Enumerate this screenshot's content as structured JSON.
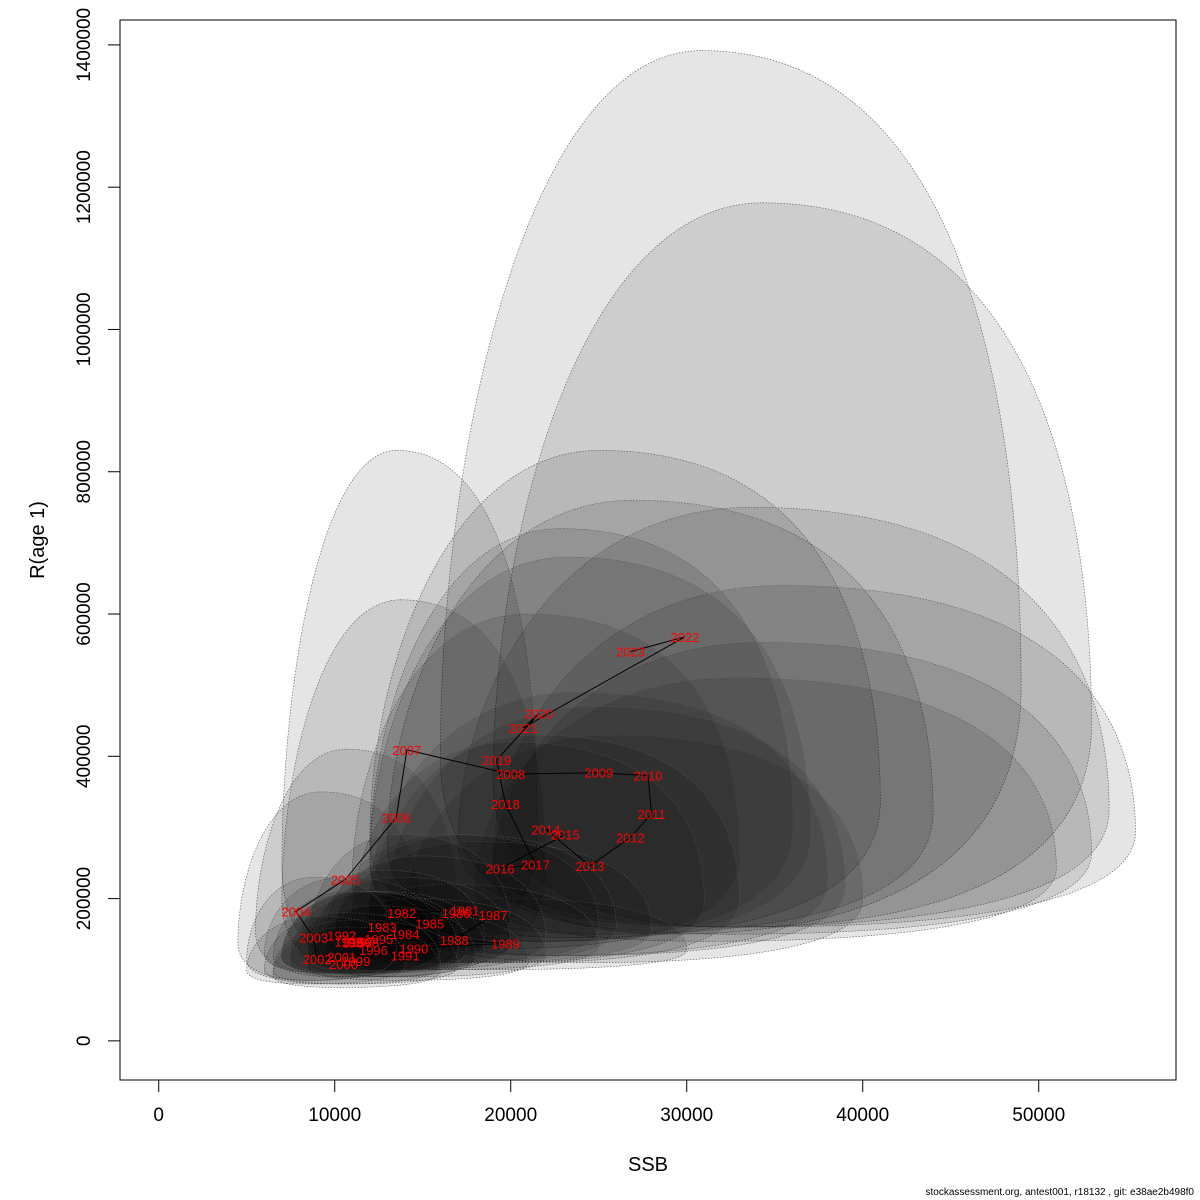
{
  "chart_data": {
    "type": "scatter",
    "title": "",
    "xlabel": "SSB",
    "ylabel": "R(age 1)",
    "xlim": [
      -2200,
      57800
    ],
    "ylim": [
      -55000,
      1435000
    ],
    "xticks": [
      0,
      10000,
      20000,
      30000,
      40000,
      50000
    ],
    "yticks": [
      0,
      200000,
      400000,
      600000,
      800000,
      1000000,
      1200000,
      1400000
    ],
    "grid": false,
    "ellipse_fill": "#000000",
    "ellipse_fill_opacity": 0.1,
    "label_color": "#ff0000",
    "path_color": "#000000",
    "points": [
      {
        "year": "1981",
        "x": 17400,
        "y": 183000
      },
      {
        "year": "1982",
        "x": 13800,
        "y": 180000
      },
      {
        "year": "1983",
        "x": 12700,
        "y": 160000
      },
      {
        "year": "1984",
        "x": 14000,
        "y": 150000
      },
      {
        "year": "1985",
        "x": 15400,
        "y": 165000
      },
      {
        "year": "1986",
        "x": 16900,
        "y": 180000
      },
      {
        "year": "1987",
        "x": 19000,
        "y": 177000
      },
      {
        "year": "1988",
        "x": 16800,
        "y": 142000
      },
      {
        "year": "1989",
        "x": 19700,
        "y": 137000
      },
      {
        "year": "1990",
        "x": 14500,
        "y": 130000
      },
      {
        "year": "1991",
        "x": 14000,
        "y": 120000
      },
      {
        "year": "1992",
        "x": 10400,
        "y": 148000
      },
      {
        "year": "1993",
        "x": 10800,
        "y": 140000
      },
      {
        "year": "1994",
        "x": 11200,
        "y": 138000
      },
      {
        "year": "1995",
        "x": 12500,
        "y": 143000
      },
      {
        "year": "1996",
        "x": 12200,
        "y": 128000
      },
      {
        "year": "1997",
        "x": 11400,
        "y": 140000
      },
      {
        "year": "1998",
        "x": 11700,
        "y": 139000
      },
      {
        "year": "1999",
        "x": 11200,
        "y": 112000
      },
      {
        "year": "2000",
        "x": 10500,
        "y": 108000
      },
      {
        "year": "2001",
        "x": 10400,
        "y": 118000
      },
      {
        "year": "2002",
        "x": 9000,
        "y": 115000
      },
      {
        "year": "2003",
        "x": 8800,
        "y": 145000
      },
      {
        "year": "2004",
        "x": 7800,
        "y": 182000
      },
      {
        "year": "2005",
        "x": 10600,
        "y": 227000
      },
      {
        "year": "2006",
        "x": 13500,
        "y": 314000
      },
      {
        "year": "2007",
        "x": 14100,
        "y": 409000
      },
      {
        "year": "2008",
        "x": 20000,
        "y": 375000
      },
      {
        "year": "2009",
        "x": 25000,
        "y": 377000
      },
      {
        "year": "2010",
        "x": 27800,
        "y": 373000
      },
      {
        "year": "2011",
        "x": 28000,
        "y": 319000
      },
      {
        "year": "2012",
        "x": 26800,
        "y": 286000
      },
      {
        "year": "2013",
        "x": 24500,
        "y": 246000
      },
      {
        "year": "2014",
        "x": 22000,
        "y": 297000
      },
      {
        "year": "2015",
        "x": 23100,
        "y": 290000
      },
      {
        "year": "2016",
        "x": 19400,
        "y": 242000
      },
      {
        "year": "2017",
        "x": 21400,
        "y": 248000
      },
      {
        "year": "2018",
        "x": 19700,
        "y": 333000
      },
      {
        "year": "2019",
        "x": 19200,
        "y": 395000
      },
      {
        "year": "2020",
        "x": 21600,
        "y": 460000
      },
      {
        "year": "2021",
        "x": 20700,
        "y": 440000
      },
      {
        "year": "2022",
        "x": 29900,
        "y": 568000
      },
      {
        "year": "2023",
        "x": 26800,
        "y": 547000
      }
    ],
    "confidence_regions": [
      {
        "year": "2022",
        "x_min": 16000,
        "x_max": 49000,
        "y_min": 150000,
        "y_max": 1392000
      },
      {
        "year": "2023",
        "x_min": 19000,
        "x_max": 53000,
        "y_min": 160000,
        "y_max": 1178000
      },
      {
        "year": "2020",
        "x_min": 12000,
        "x_max": 41000,
        "y_min": 145000,
        "y_max": 830000
      },
      {
        "year": "2021",
        "x_min": 13000,
        "x_max": 44000,
        "y_min": 150000,
        "y_max": 760000
      },
      {
        "year": "2007",
        "x_min": 7000,
        "x_max": 21500,
        "y_min": 100000,
        "y_max": 830000
      },
      {
        "year": "2009",
        "x_min": 17000,
        "x_max": 54000,
        "y_min": 160000,
        "y_max": 750000
      },
      {
        "year": "2010",
        "x_min": 19000,
        "x_max": 55500,
        "y_min": 160000,
        "y_max": 640000
      },
      {
        "year": "2011",
        "x_min": 19000,
        "x_max": 53000,
        "y_min": 150000,
        "y_max": 560000
      },
      {
        "year": "2012",
        "x_min": 18000,
        "x_max": 51000,
        "y_min": 140000,
        "y_max": 510000
      },
      {
        "year": "2008",
        "x_min": 12000,
        "x_max": 36000,
        "y_min": 140000,
        "y_max": 720000
      },
      {
        "year": "2019",
        "x_min": 12000,
        "x_max": 37000,
        "y_min": 140000,
        "y_max": 680000
      },
      {
        "year": "2006",
        "x_min": 7000,
        "x_max": 22000,
        "y_min": 90000,
        "y_max": 620000
      },
      {
        "year": "2018",
        "x_min": 11000,
        "x_max": 33000,
        "y_min": 130000,
        "y_max": 600000
      },
      {
        "year": "2013",
        "x_min": 14000,
        "x_max": 40000,
        "y_min": 110000,
        "y_max": 430000
      },
      {
        "year": "2014",
        "x_min": 12000,
        "x_max": 38000,
        "y_min": 120000,
        "y_max": 490000
      },
      {
        "year": "2015",
        "x_min": 13000,
        "x_max": 39000,
        "y_min": 120000,
        "y_max": 470000
      },
      {
        "year": "2016",
        "x_min": 11000,
        "x_max": 31000,
        "y_min": 110000,
        "y_max": 420000
      },
      {
        "year": "2017",
        "x_min": 12000,
        "x_max": 33000,
        "y_min": 110000,
        "y_max": 430000
      },
      {
        "year": "2005",
        "x_min": 5500,
        "x_max": 17000,
        "y_min": 90000,
        "y_max": 410000
      },
      {
        "year": "2004",
        "x_min": 4500,
        "x_max": 15000,
        "y_min": 85000,
        "y_max": 350000
      },
      {
        "year": "1989",
        "x_min": 11000,
        "x_max": 30000,
        "y_min": 100000,
        "y_max": 200000
      },
      {
        "year": "1987",
        "x_min": 10000,
        "x_max": 28000,
        "y_min": 110000,
        "y_max": 280000
      },
      {
        "year": "1986",
        "x_min": 9500,
        "x_max": 25000,
        "y_min": 110000,
        "y_max": 290000
      },
      {
        "year": "1981",
        "x_min": 10000,
        "x_max": 26000,
        "y_min": 110000,
        "y_max": 290000
      },
      {
        "year": "1988",
        "x_min": 9500,
        "x_max": 25000,
        "y_min": 100000,
        "y_max": 220000
      },
      {
        "year": "1982",
        "x_min": 8500,
        "x_max": 20000,
        "y_min": 100000,
        "y_max": 290000
      },
      {
        "year": "1985",
        "x_min": 9000,
        "x_max": 22000,
        "y_min": 100000,
        "y_max": 260000
      },
      {
        "year": "1984",
        "x_min": 8500,
        "x_max": 20000,
        "y_min": 100000,
        "y_max": 230000
      },
      {
        "year": "1983",
        "x_min": 8000,
        "x_max": 18500,
        "y_min": 100000,
        "y_max": 240000
      },
      {
        "year": "1990",
        "x_min": 8500,
        "x_max": 22000,
        "y_min": 90000,
        "y_max": 200000
      },
      {
        "year": "1991",
        "x_min": 8500,
        "x_max": 21000,
        "y_min": 85000,
        "y_max": 180000
      },
      {
        "year": "1992",
        "x_min": 6000,
        "x_max": 16000,
        "y_min": 95000,
        "y_max": 230000
      },
      {
        "year": "1993",
        "x_min": 6500,
        "x_max": 16000,
        "y_min": 95000,
        "y_max": 210000
      },
      {
        "year": "1994",
        "x_min": 7000,
        "x_max": 17000,
        "y_min": 95000,
        "y_max": 210000
      },
      {
        "year": "1995",
        "x_min": 7500,
        "x_max": 18500,
        "y_min": 95000,
        "y_max": 210000
      },
      {
        "year": "1996",
        "x_min": 7500,
        "x_max": 18000,
        "y_min": 90000,
        "y_max": 190000
      },
      {
        "year": "1997",
        "x_min": 7000,
        "x_max": 17000,
        "y_min": 95000,
        "y_max": 210000
      },
      {
        "year": "1998",
        "x_min": 7000,
        "x_max": 17500,
        "y_min": 95000,
        "y_max": 210000
      },
      {
        "year": "1999",
        "x_min": 6500,
        "x_max": 17000,
        "y_min": 80000,
        "y_max": 170000
      },
      {
        "year": "2000",
        "x_min": 6500,
        "x_max": 16000,
        "y_min": 75000,
        "y_max": 160000
      },
      {
        "year": "2001",
        "x_min": 6000,
        "x_max": 16000,
        "y_min": 80000,
        "y_max": 180000
      },
      {
        "year": "2002",
        "x_min": 5000,
        "x_max": 14000,
        "y_min": 80000,
        "y_max": 175000
      },
      {
        "year": "2003",
        "x_min": 5000,
        "x_max": 13500,
        "y_min": 85000,
        "y_max": 230000
      }
    ]
  },
  "footer_text": "stockassessment.org, antest001, r18132 , git: e38ae2b498f0"
}
